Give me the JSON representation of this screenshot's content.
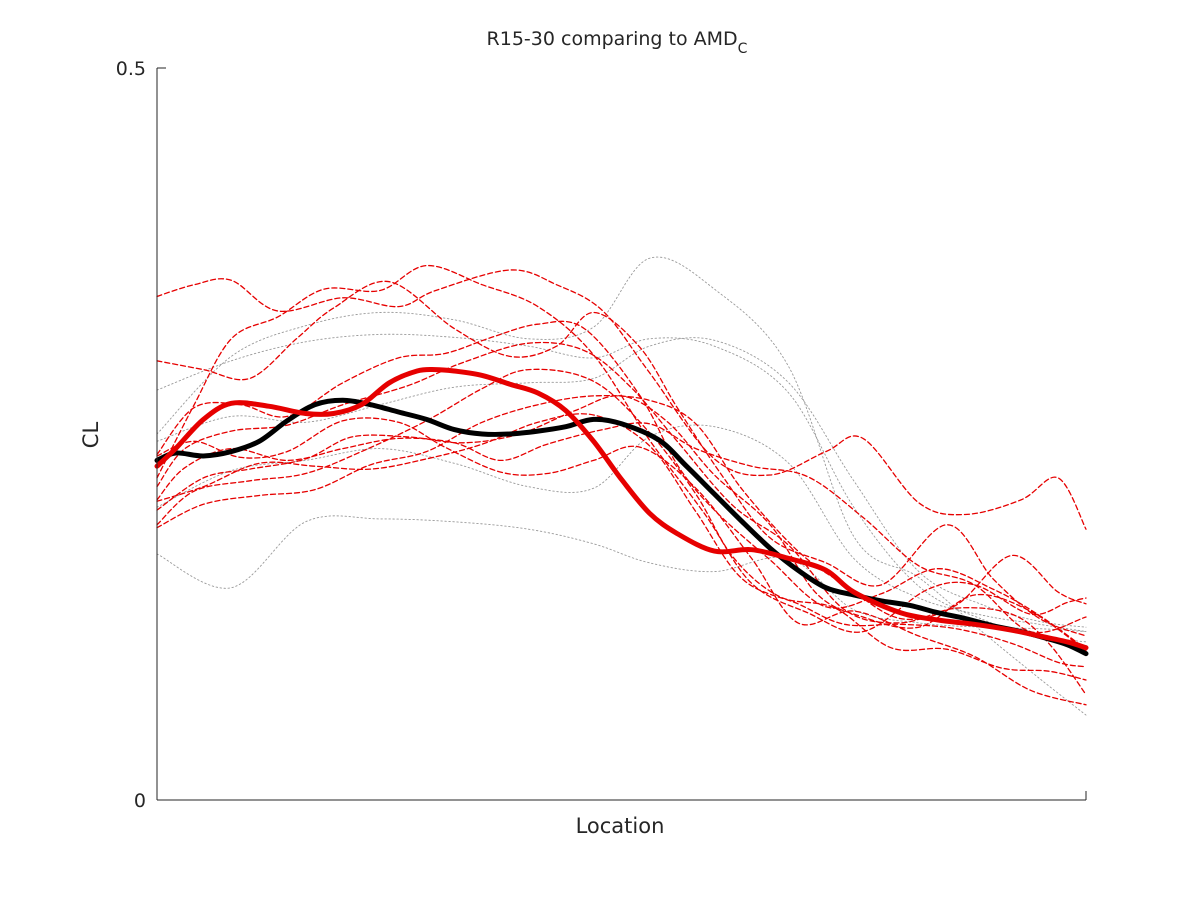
{
  "chart_data": {
    "type": "line",
    "title": "R15-30 comparing to AMD",
    "title_subscript": "C",
    "xlabel": "Location",
    "ylabel": "CL",
    "xlim": [
      0,
      1
    ],
    "ylim": [
      0,
      0.5
    ],
    "y_ticks": [
      0,
      0.5
    ],
    "y_tick_labels": [
      "0",
      "0.5"
    ],
    "x_ticks": [],
    "grid": false,
    "legend": "none",
    "colors": {
      "red": "#e60000",
      "black": "#000000",
      "gray": "#999999",
      "axis": "#262626"
    },
    "series": [
      {
        "style": "thick-red",
        "x": [
          0,
          0.02,
          0.05,
          0.08,
          0.12,
          0.16,
          0.19,
          0.22,
          0.25,
          0.28,
          0.3,
          0.32,
          0.35,
          0.38,
          0.41,
          0.44,
          0.47,
          0.5,
          0.53,
          0.56,
          0.6,
          0.64,
          0.68,
          0.72,
          0.75,
          0.8,
          0.84,
          0.88,
          0.92,
          0.95,
          0.98,
          1.0
        ],
        "y": [
          0.228,
          0.24,
          0.26,
          0.271,
          0.269,
          0.264,
          0.264,
          0.27,
          0.285,
          0.293,
          0.294,
          0.293,
          0.29,
          0.284,
          0.278,
          0.266,
          0.245,
          0.219,
          0.196,
          0.182,
          0.17,
          0.171,
          0.165,
          0.157,
          0.142,
          0.128,
          0.123,
          0.12,
          0.116,
          0.112,
          0.108,
          0.104
        ]
      },
      {
        "style": "thick-black",
        "x": [
          0,
          0.02,
          0.05,
          0.08,
          0.11,
          0.14,
          0.17,
          0.2,
          0.23,
          0.26,
          0.29,
          0.32,
          0.35,
          0.38,
          0.41,
          0.44,
          0.47,
          0.5,
          0.54,
          0.57,
          0.6,
          0.63,
          0.66,
          0.69,
          0.72,
          0.75,
          0.78,
          0.81,
          0.84,
          0.87,
          0.9,
          0.93,
          0.96,
          0.98,
          1.0
        ],
        "y": [
          0.232,
          0.237,
          0.235,
          0.238,
          0.245,
          0.259,
          0.27,
          0.273,
          0.27,
          0.265,
          0.26,
          0.253,
          0.25,
          0.25,
          0.252,
          0.255,
          0.26,
          0.257,
          0.246,
          0.228,
          0.209,
          0.19,
          0.172,
          0.157,
          0.145,
          0.14,
          0.136,
          0.133,
          0.128,
          0.124,
          0.119,
          0.115,
          0.11,
          0.106,
          0.1
        ]
      },
      {
        "style": "thin-dashed-red",
        "x": [
          0,
          0.04,
          0.08,
          0.13,
          0.2,
          0.26,
          0.3,
          0.38,
          0.43,
          0.48,
          0.53,
          0.6,
          0.66,
          0.72,
          0.76,
          0.82,
          0.87,
          0.93,
          0.97,
          1.0
        ],
        "y": [
          0.344,
          0.352,
          0.355,
          0.334,
          0.343,
          0.337,
          0.348,
          0.362,
          0.352,
          0.334,
          0.292,
          0.233,
          0.222,
          0.238,
          0.247,
          0.203,
          0.195,
          0.205,
          0.22,
          0.185
        ]
      },
      {
        "style": "thin-dashed-red",
        "x": [
          0,
          0.04,
          0.08,
          0.13,
          0.18,
          0.24,
          0.29,
          0.35,
          0.41,
          0.47,
          0.53,
          0.59,
          0.64,
          0.7,
          0.76,
          0.83,
          0.88,
          0.94,
          0.98,
          1.0
        ],
        "y": [
          0.22,
          0.27,
          0.315,
          0.33,
          0.349,
          0.348,
          0.365,
          0.352,
          0.337,
          0.304,
          0.246,
          0.195,
          0.148,
          0.128,
          0.115,
          0.144,
          0.147,
          0.127,
          0.135,
          0.138
        ]
      },
      {
        "style": "thin-dashed-red",
        "x": [
          0,
          0.05,
          0.1,
          0.15,
          0.19,
          0.25,
          0.32,
          0.38,
          0.43,
          0.47,
          0.52,
          0.56,
          0.61,
          0.66,
          0.72,
          0.78,
          0.85,
          0.9,
          0.95,
          1.0
        ],
        "y": [
          0.3,
          0.294,
          0.288,
          0.315,
          0.336,
          0.354,
          0.322,
          0.303,
          0.31,
          0.333,
          0.309,
          0.268,
          0.22,
          0.179,
          0.162,
          0.147,
          0.188,
          0.151,
          0.124,
          0.112
        ]
      },
      {
        "style": "thin-dashed-red",
        "x": [
          0,
          0.04,
          0.09,
          0.14,
          0.2,
          0.26,
          0.31,
          0.36,
          0.41,
          0.46,
          0.52,
          0.56,
          0.6,
          0.66,
          0.72,
          0.78,
          0.84,
          0.9,
          0.95,
          1.0
        ],
        "y": [
          0.236,
          0.268,
          0.27,
          0.262,
          0.285,
          0.302,
          0.305,
          0.316,
          0.325,
          0.322,
          0.276,
          0.229,
          0.198,
          0.164,
          0.132,
          0.141,
          0.158,
          0.144,
          0.126,
          0.103
        ]
      },
      {
        "style": "thin-dashed-red",
        "x": [
          0,
          0.03,
          0.08,
          0.14,
          0.2,
          0.27,
          0.33,
          0.4,
          0.46,
          0.51,
          0.56,
          0.62,
          0.68,
          0.74,
          0.8,
          0.86,
          0.92,
          0.96,
          1.0
        ],
        "y": [
          0.214,
          0.24,
          0.252,
          0.256,
          0.27,
          0.283,
          0.299,
          0.312,
          0.307,
          0.282,
          0.245,
          0.201,
          0.174,
          0.13,
          0.121,
          0.131,
          0.127,
          0.107,
          0.072
        ]
      },
      {
        "style": "thin-dashed-red",
        "x": [
          0,
          0.04,
          0.1,
          0.16,
          0.22,
          0.29,
          0.35,
          0.4,
          0.47,
          0.53,
          0.58,
          0.62,
          0.67,
          0.73,
          0.79,
          0.85,
          0.91,
          0.96,
          1.0
        ],
        "y": [
          0.188,
          0.211,
          0.218,
          0.223,
          0.238,
          0.259,
          0.281,
          0.294,
          0.286,
          0.251,
          0.209,
          0.166,
          0.139,
          0.131,
          0.104,
          0.103,
          0.09,
          0.088,
          0.082
        ]
      },
      {
        "style": "thin-dashed-red",
        "x": [
          0,
          0.05,
          0.1,
          0.16,
          0.21,
          0.27,
          0.33,
          0.39,
          0.45,
          0.5,
          0.55,
          0.6,
          0.66,
          0.71,
          0.76,
          0.82,
          0.88,
          0.94,
          1.0
        ],
        "y": [
          0.198,
          0.22,
          0.226,
          0.233,
          0.248,
          0.248,
          0.244,
          0.25,
          0.266,
          0.276,
          0.258,
          0.222,
          0.188,
          0.141,
          0.125,
          0.118,
          0.14,
          0.129,
          0.102
        ]
      },
      {
        "style": "thin-dashed-red",
        "x": [
          0,
          0.04,
          0.09,
          0.14,
          0.2,
          0.26,
          0.31,
          0.37,
          0.42,
          0.47,
          0.52,
          0.58,
          0.64,
          0.69,
          0.75,
          0.82,
          0.88,
          0.94,
          1.0
        ],
        "y": [
          0.235,
          0.245,
          0.234,
          0.238,
          0.259,
          0.258,
          0.241,
          0.224,
          0.223,
          0.232,
          0.241,
          0.213,
          0.165,
          0.121,
          0.129,
          0.112,
          0.098,
          0.075,
          0.065
        ]
      },
      {
        "style": "thin-dashed-red",
        "x": [
          0,
          0.03,
          0.08,
          0.14,
          0.2,
          0.26,
          0.32,
          0.37,
          0.42,
          0.48,
          0.53,
          0.58,
          0.64,
          0.7,
          0.76,
          0.82,
          0.88,
          0.94,
          1.0
        ],
        "y": [
          0.205,
          0.227,
          0.24,
          0.232,
          0.24,
          0.247,
          0.244,
          0.232,
          0.243,
          0.253,
          0.257,
          0.24,
          0.228,
          0.221,
          0.193,
          0.16,
          0.147,
          0.115,
          0.125
        ]
      },
      {
        "style": "thin-dashed-red",
        "x": [
          0,
          0.05,
          0.11,
          0.17,
          0.23,
          0.29,
          0.35,
          0.41,
          0.47,
          0.53,
          0.58,
          0.63,
          0.69,
          0.74,
          0.8,
          0.86,
          0.92,
          0.97,
          1.0
        ],
        "y": [
          0.204,
          0.214,
          0.23,
          0.228,
          0.226,
          0.233,
          0.243,
          0.258,
          0.263,
          0.242,
          0.197,
          0.151,
          0.134,
          0.12,
          0.12,
          0.117,
          0.107,
          0.094,
          0.091
        ]
      },
      {
        "style": "thin-dashed-red",
        "x": [
          0,
          0.05,
          0.11,
          0.17,
          0.23,
          0.29,
          0.35,
          0.41,
          0.47,
          0.53,
          0.58,
          0.63,
          0.69,
          0.74,
          0.8,
          0.86,
          0.92,
          0.97,
          1.0
        ],
        "y": [
          0.186,
          0.202,
          0.208,
          0.212,
          0.229,
          0.238,
          0.258,
          0.27,
          0.276,
          0.273,
          0.257,
          0.212,
          0.17,
          0.147,
          0.124,
          0.133,
          0.167,
          0.142,
          0.134
        ]
      },
      {
        "style": "dotted-gray",
        "x": [
          0,
          0.08,
          0.16,
          0.24,
          0.32,
          0.4,
          0.47,
          0.53,
          0.6,
          0.68,
          0.75,
          0.82,
          0.89,
          0.95,
          1.0
        ],
        "y": [
          0.25,
          0.303,
          0.324,
          0.333,
          0.328,
          0.315,
          0.323,
          0.37,
          0.349,
          0.296,
          0.18,
          0.152,
          0.114,
          0.083,
          0.058
        ]
      },
      {
        "style": "dotted-gray",
        "x": [
          0,
          0.08,
          0.16,
          0.24,
          0.32,
          0.4,
          0.47,
          0.53,
          0.6,
          0.68,
          0.75,
          0.82,
          0.89,
          0.95,
          1.0
        ],
        "y": [
          0.28,
          0.3,
          0.313,
          0.318,
          0.316,
          0.31,
          0.302,
          0.315,
          0.31,
          0.278,
          0.2,
          0.146,
          0.123,
          0.112,
          0.108
        ]
      },
      {
        "style": "dotted-gray",
        "x": [
          0,
          0.08,
          0.16,
          0.24,
          0.32,
          0.4,
          0.47,
          0.53,
          0.6,
          0.68,
          0.75,
          0.82,
          0.89,
          0.95,
          1.0
        ],
        "y": [
          0.168,
          0.145,
          0.19,
          0.192,
          0.19,
          0.185,
          0.175,
          0.162,
          0.156,
          0.165,
          0.13,
          0.121,
          0.118,
          0.117,
          0.115
        ]
      },
      {
        "style": "dotted-gray",
        "x": [
          0,
          0.08,
          0.16,
          0.24,
          0.32,
          0.4,
          0.47,
          0.53,
          0.6,
          0.68,
          0.75,
          0.82,
          0.89,
          0.95,
          1.0
        ],
        "y": [
          0.245,
          0.262,
          0.258,
          0.27,
          0.282,
          0.285,
          0.288,
          0.31,
          0.314,
          0.285,
          0.218,
          0.156,
          0.133,
          0.122,
          0.118
        ]
      },
      {
        "style": "dotted-gray",
        "x": [
          0,
          0.08,
          0.16,
          0.24,
          0.32,
          0.4,
          0.47,
          0.53,
          0.6,
          0.68,
          0.75,
          0.82,
          0.89,
          0.95,
          1.0
        ],
        "y": [
          0.2,
          0.225,
          0.232,
          0.24,
          0.23,
          0.214,
          0.213,
          0.248,
          0.255,
          0.23,
          0.165,
          0.138,
          0.126,
          0.12,
          0.115
        ]
      }
    ]
  }
}
